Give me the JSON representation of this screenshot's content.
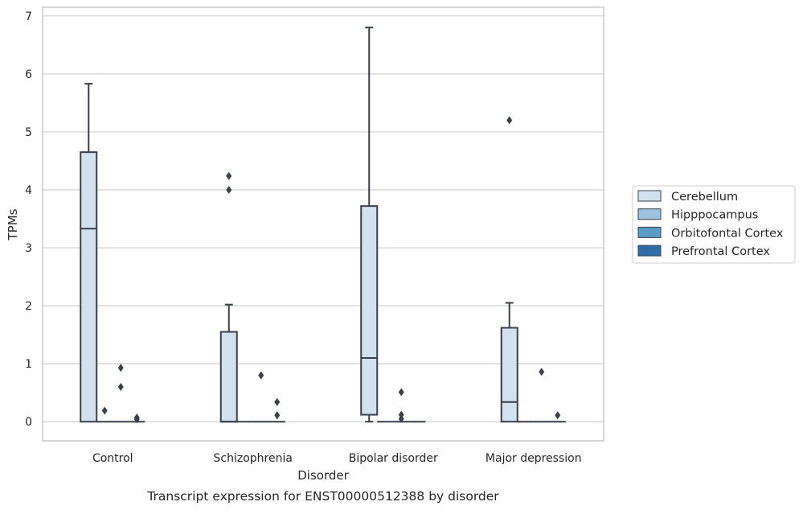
{
  "chart_data": {
    "type": "box",
    "caption": "Transcript expression for ENST00000512388 by disorder",
    "xlabel": "Disorder",
    "ylabel": "TPMs",
    "ylim": [
      -0.33,
      7.15
    ],
    "yticks": [
      0,
      1,
      2,
      3,
      4,
      5,
      6,
      7
    ],
    "categories": [
      "Control",
      "Schizophrenia",
      "Bipolar disorder",
      "Major depression"
    ],
    "grid": "horizontal",
    "legend_position": "right",
    "series": [
      {
        "name": "Cerebellum",
        "color": "#d2e1f0",
        "boxes": [
          {
            "q1": 0,
            "median": 3.33,
            "q3": 4.65,
            "whisker_low": 0,
            "whisker_high": 5.83,
            "outliers": []
          },
          {
            "q1": 0,
            "median": 0,
            "q3": 1.55,
            "whisker_low": 0,
            "whisker_high": 2.02,
            "outliers": [
              4.24,
              4.0
            ]
          },
          {
            "q1": 0.12,
            "median": 1.1,
            "q3": 3.72,
            "whisker_low": 0,
            "whisker_high": 6.8,
            "outliers": []
          },
          {
            "q1": 0,
            "median": 0.34,
            "q3": 1.62,
            "whisker_low": 0,
            "whisker_high": 2.05,
            "outliers": [
              5.2
            ]
          }
        ]
      },
      {
        "name": "Hipppocampus",
        "color": "#9fc3de",
        "boxes": [
          {
            "q1": 0,
            "median": 0,
            "q3": 0,
            "whisker_low": 0,
            "whisker_high": 0,
            "outliers": [
              0.19
            ]
          },
          {
            "q1": 0,
            "median": 0,
            "q3": 0,
            "whisker_low": 0,
            "whisker_high": 0,
            "outliers": []
          },
          {
            "q1": 0,
            "median": 0,
            "q3": 0,
            "whisker_low": 0,
            "whisker_high": 0,
            "outliers": []
          },
          {
            "q1": 0,
            "median": 0,
            "q3": 0,
            "whisker_low": 0,
            "whisker_high": 0,
            "outliers": []
          }
        ]
      },
      {
        "name": "Orbitofontal Cortex",
        "color": "#5a9bc8",
        "boxes": [
          {
            "q1": 0,
            "median": 0,
            "q3": 0,
            "whisker_low": 0,
            "whisker_high": 0,
            "outliers": [
              0.93,
              0.6
            ]
          },
          {
            "q1": 0,
            "median": 0,
            "q3": 0,
            "whisker_low": 0,
            "whisker_high": 0,
            "outliers": [
              0.8
            ]
          },
          {
            "q1": 0,
            "median": 0,
            "q3": 0,
            "whisker_low": 0,
            "whisker_high": 0,
            "outliers": [
              0.51,
              0.12,
              0.05
            ]
          },
          {
            "q1": 0,
            "median": 0,
            "q3": 0,
            "whisker_low": 0,
            "whisker_high": 0,
            "outliers": [
              0.86
            ]
          }
        ]
      },
      {
        "name": "Prefrontal Cortex",
        "color": "#2d6ea8",
        "boxes": [
          {
            "q1": 0,
            "median": 0,
            "q3": 0,
            "whisker_low": 0,
            "whisker_high": 0,
            "outliers": [
              0.07,
              0.04
            ]
          },
          {
            "q1": 0,
            "median": 0,
            "q3": 0,
            "whisker_low": 0,
            "whisker_high": 0,
            "outliers": [
              0.34,
              0.11
            ]
          },
          {
            "q1": 0,
            "median": 0,
            "q3": 0,
            "whisker_low": 0,
            "whisker_high": 0,
            "outliers": []
          },
          {
            "q1": 0,
            "median": 0,
            "q3": 0,
            "whisker_low": 0,
            "whisker_high": 0,
            "outliers": [
              0.11
            ]
          }
        ]
      }
    ]
  },
  "style": {
    "box_edge_color": "#3a3f4b",
    "grid_color": "#d0d0d0",
    "frame_color": "#c8c8c8"
  }
}
